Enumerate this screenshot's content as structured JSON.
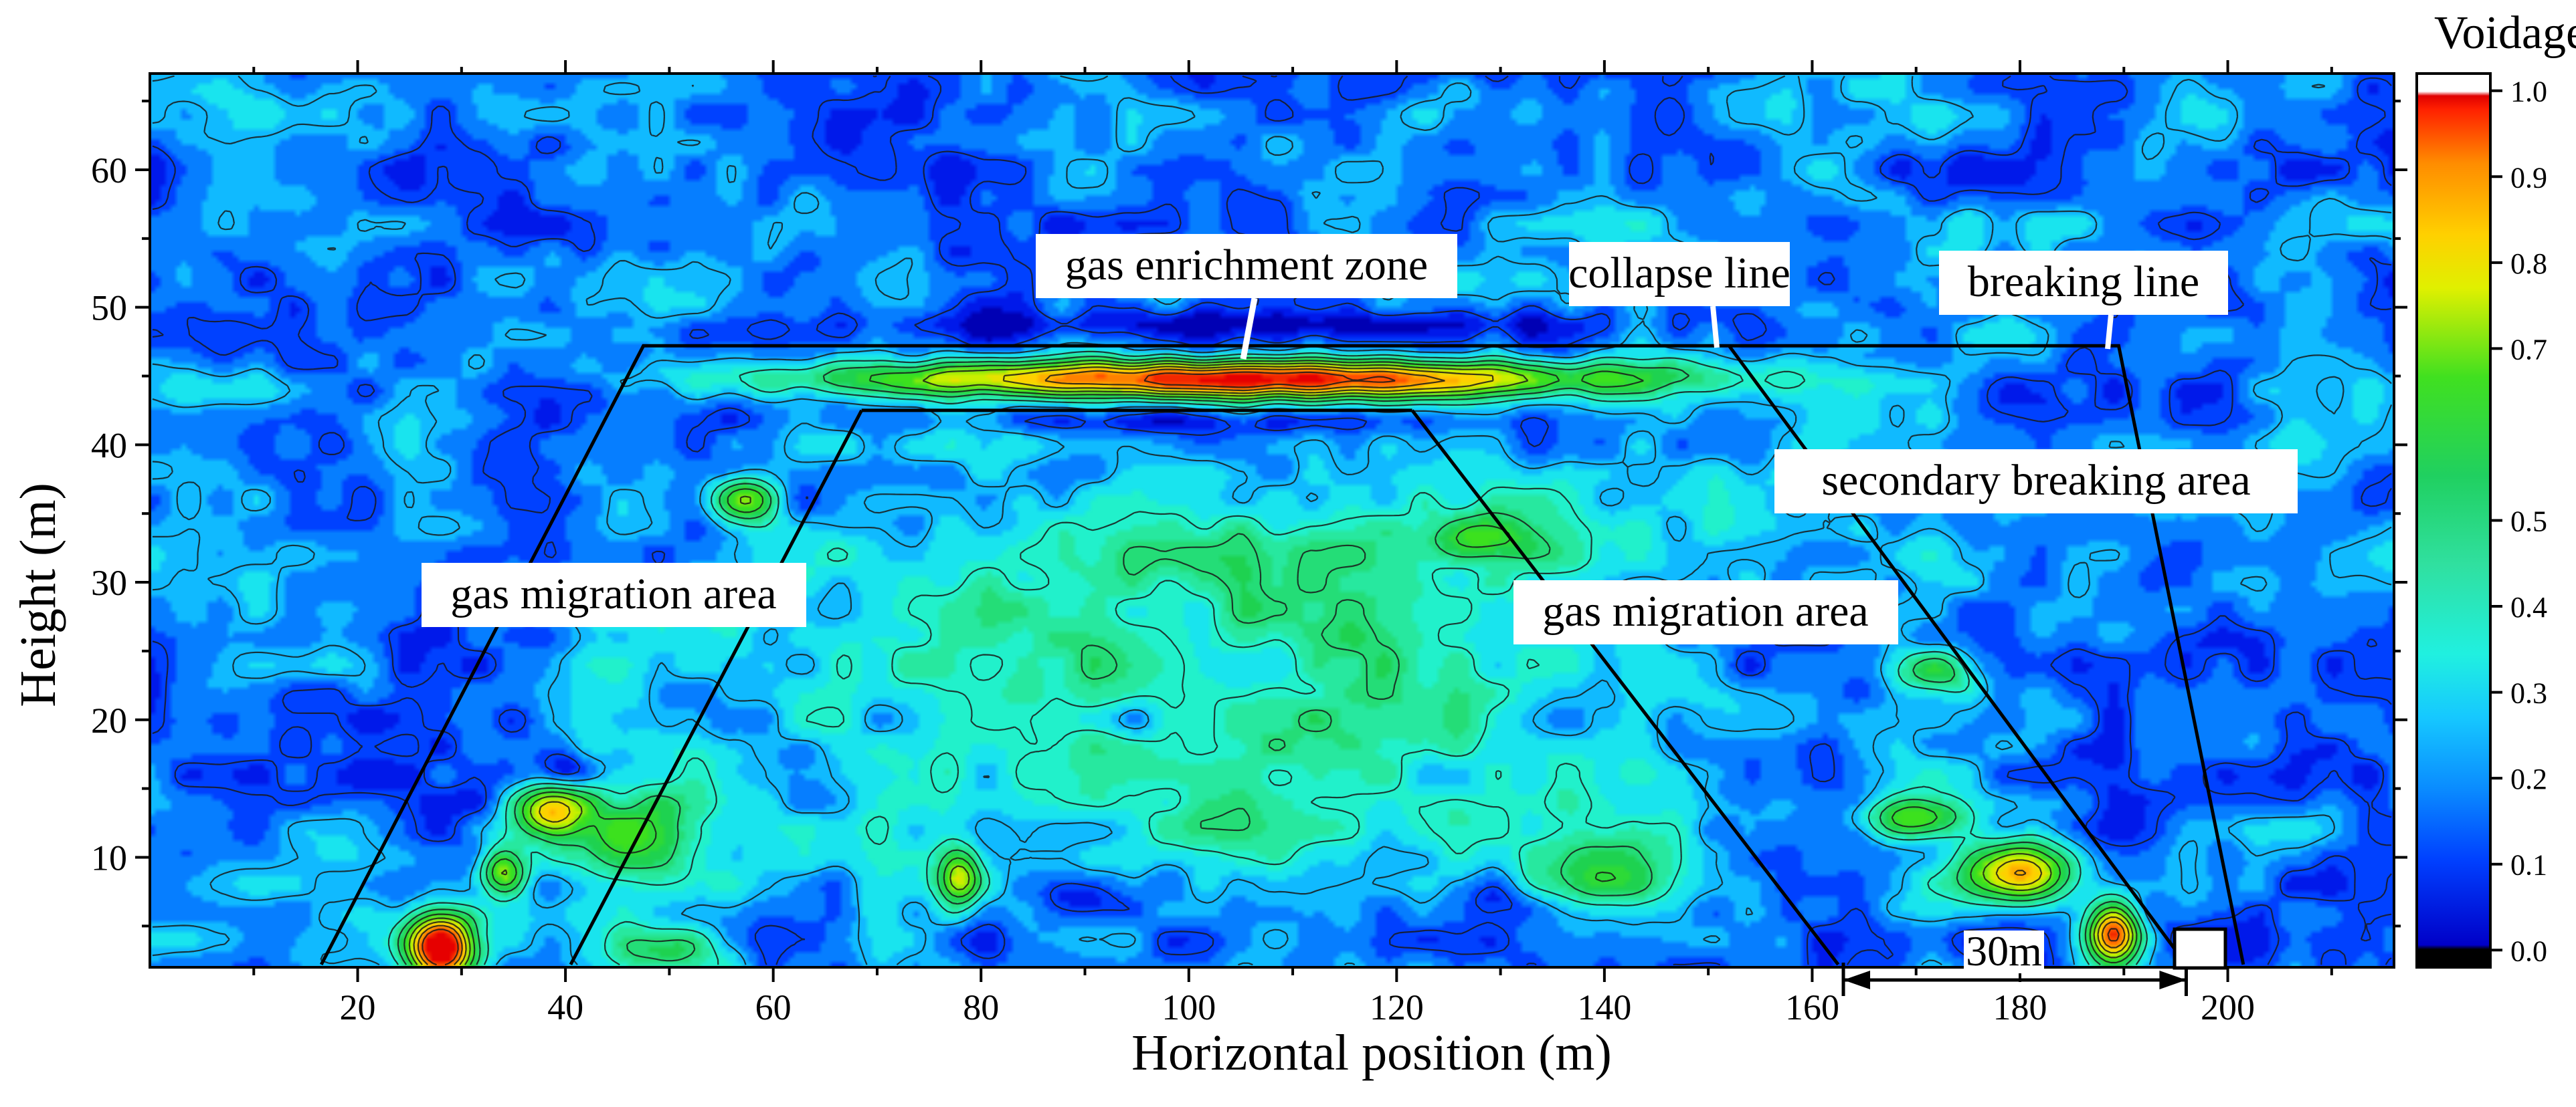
{
  "chart_data": {
    "type": "heatmap",
    "title": "",
    "xlabel": "Horizontal position (m)",
    "ylabel": "Height (m)",
    "xlim": [
      0,
      216
    ],
    "ylim": [
      2,
      67
    ],
    "x_ticks": [
      20,
      40,
      60,
      80,
      100,
      120,
      140,
      160,
      180,
      200
    ],
    "y_ticks": [
      10,
      20,
      30,
      40,
      50,
      60
    ],
    "colorbar": {
      "title": "Voidage",
      "range": [
        -0.02,
        1.02
      ],
      "ticks": [
        "0.0",
        "0.1",
        "0.2",
        "0.3",
        "0.4",
        "0.5",
        "0.7",
        "0.8",
        "0.9",
        "1.0"
      ],
      "tick_values": [
        0.0,
        0.1,
        0.2,
        0.3,
        0.4,
        0.5,
        0.7,
        0.8,
        0.9,
        1.0
      ]
    },
    "field": {
      "background_voidage": 0.15,
      "hotspots": [
        {
          "x": 104,
          "y": 44.8,
          "sx": 38,
          "sy": 1.4,
          "value": 0.83
        },
        {
          "x": 28,
          "y": 3.5,
          "sx": 3.2,
          "sy": 2.4,
          "value": 0.93
        },
        {
          "x": 189,
          "y": 4.5,
          "sx": 2.4,
          "sy": 2.4,
          "value": 0.78
        },
        {
          "x": 180,
          "y": 9,
          "sx": 5,
          "sy": 2.2,
          "value": 0.68
        },
        {
          "x": 38.5,
          "y": 13.5,
          "sx": 3.2,
          "sy": 1.8,
          "value": 0.52
        },
        {
          "x": 34,
          "y": 9,
          "sx": 2.2,
          "sy": 1.8,
          "value": 0.45
        },
        {
          "x": 57,
          "y": 36,
          "sx": 3,
          "sy": 1.6,
          "value": 0.48
        },
        {
          "x": 78,
          "y": 8.5,
          "sx": 2,
          "sy": 2,
          "value": 0.42
        },
        {
          "x": 170,
          "y": 13,
          "sx": 5,
          "sy": 1.6,
          "value": 0.42
        },
        {
          "x": 172,
          "y": 23.5,
          "sx": 4,
          "sy": 1.8,
          "value": 0.38
        },
        {
          "x": 128,
          "y": 33.5,
          "sx": 5,
          "sy": 1.6,
          "value": 0.33
        },
        {
          "x": 46,
          "y": 11,
          "sx": 8,
          "sy": 5,
          "value": 0.3
        },
        {
          "x": 100,
          "y": 18,
          "sx": 40,
          "sy": 10,
          "value": 0.2
        },
        {
          "x": 110,
          "y": 32,
          "sx": 45,
          "sy": 8,
          "value": 0.16
        },
        {
          "x": 50,
          "y": 3,
          "sx": 6,
          "sy": 2,
          "value": 0.3
        },
        {
          "x": 140,
          "y": 9,
          "sx": 6,
          "sy": 3,
          "value": 0.28
        }
      ],
      "voids": [
        {
          "x": 104,
          "y": 48.8,
          "sx": 34,
          "sy": 0.9,
          "value": -0.12
        },
        {
          "x": 104,
          "y": 41.6,
          "sx": 34,
          "sy": 0.8,
          "value": -0.08
        },
        {
          "x": 40,
          "y": 16.5,
          "sx": 2,
          "sy": 1.3,
          "value": -0.12
        },
        {
          "x": 66,
          "y": 8,
          "sx": 2,
          "sy": 1.3,
          "value": -0.1
        },
        {
          "x": 130,
          "y": 7,
          "sx": 5,
          "sy": 1.4,
          "value": -0.1
        },
        {
          "x": 90,
          "y": 7,
          "sx": 4,
          "sy": 1.4,
          "value": -0.1
        },
        {
          "x": 95,
          "y": 20,
          "sx": 2.5,
          "sy": 1.6,
          "value": -0.1
        }
      ]
    },
    "annotations": {
      "gas_enrichment_zone": "gas enrichment zone",
      "collapse_line": "collapse line",
      "breaking_line": "breaking line",
      "secondary_breaking_area": "secondary breaking area",
      "gas_migration_area_left": "gas migration area",
      "gas_migration_area_right": "gas migration area",
      "distance_label": "30m"
    },
    "lines": {
      "outer_trapezoid": [
        [
          16.5,
          2.2
        ],
        [
          47.5,
          47.2
        ],
        [
          189.5,
          47.2
        ],
        [
          201.5,
          2.2
        ]
      ],
      "inner_left": [
        [
          40.5,
          2.2
        ],
        [
          68.5,
          42.5
        ]
      ],
      "inner_top": [
        [
          68.5,
          42.5
        ],
        [
          121.5,
          42.5
        ]
      ],
      "inner_right_1": [
        [
          121.5,
          42.5
        ],
        [
          162.5,
          2.2
        ]
      ],
      "inner_right_2": [
        [
          152,
          47.2
        ],
        [
          196,
          2.2
        ]
      ],
      "span_arrow": [
        [
          163,
          196
        ]
      ]
    }
  }
}
